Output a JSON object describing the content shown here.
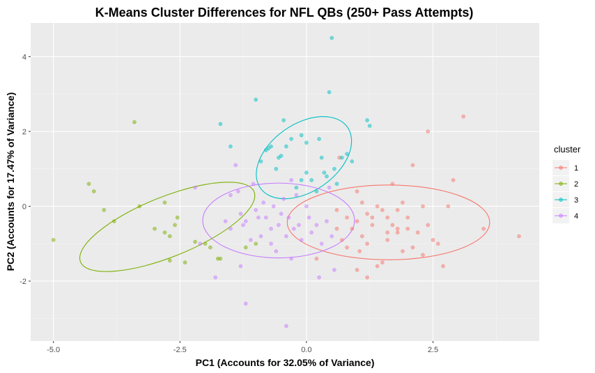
{
  "chart_data": {
    "type": "scatter",
    "title": "K-Means Cluster Differences for NFL QBs (250+ Pass Attempts)",
    "xlabel": "PC1 (Accounts for 32.05% of Variance)",
    "ylabel": "PC2 (Accounts for 17.47% of Variance)",
    "xlim": [
      -5.45,
      4.6
    ],
    "ylim": [
      -3.6,
      4.9
    ],
    "x_ticks": [
      -5.0,
      -2.5,
      0.0,
      2.5
    ],
    "x_tick_labels": [
      "-5.0",
      "-2.5",
      "0.0",
      "2.5"
    ],
    "y_ticks": [
      -2,
      0,
      2,
      4
    ],
    "y_tick_labels": [
      "-2",
      "0",
      "2",
      "4"
    ],
    "grid": true,
    "legend": {
      "title": "cluster",
      "position": "right"
    },
    "series": [
      {
        "name": "1",
        "color": "#F8766D",
        "ellipse": {
          "cx": 1.62,
          "cy": -0.43,
          "rx": 2.0,
          "ry": 1.0,
          "angle": 0
        },
        "points": [
          [
            0.6,
            -0.1
          ],
          [
            0.6,
            -0.6
          ],
          [
            0.7,
            -0.9
          ],
          [
            0.8,
            -0.3
          ],
          [
            0.9,
            -0.6
          ],
          [
            1.0,
            0.4
          ],
          [
            1.0,
            -0.4
          ],
          [
            1.05,
            -1.2
          ],
          [
            1.1,
            0.1
          ],
          [
            1.1,
            -0.8
          ],
          [
            1.2,
            -0.2
          ],
          [
            1.2,
            -1.0
          ],
          [
            1.3,
            -0.5
          ],
          [
            1.3,
            -0.3
          ],
          [
            1.4,
            0.0
          ],
          [
            1.4,
            -1.6
          ],
          [
            1.5,
            -0.1
          ],
          [
            1.5,
            -1.5
          ],
          [
            1.6,
            -0.3
          ],
          [
            1.6,
            -0.9
          ],
          [
            1.7,
            0.6
          ],
          [
            1.7,
            -0.5
          ],
          [
            1.8,
            -0.1
          ],
          [
            1.8,
            -0.7
          ],
          [
            1.9,
            -1.2
          ],
          [
            1.9,
            0.1
          ],
          [
            2.0,
            -0.3
          ],
          [
            2.0,
            -0.6
          ],
          [
            2.1,
            -1.1
          ],
          [
            2.1,
            1.1
          ],
          [
            2.2,
            -0.7
          ],
          [
            2.3,
            0.0
          ],
          [
            2.3,
            -1.3
          ],
          [
            2.4,
            2.0
          ],
          [
            2.4,
            -0.5
          ],
          [
            2.5,
            -0.9
          ],
          [
            2.6,
            -1.0
          ],
          [
            2.7,
            -1.6
          ],
          [
            2.8,
            0.0
          ],
          [
            2.9,
            0.7
          ],
          [
            3.1,
            2.4
          ],
          [
            3.5,
            -0.6
          ],
          [
            4.2,
            -0.8
          ],
          [
            1.2,
            -1.9
          ],
          [
            1.0,
            -1.7
          ],
          [
            0.2,
            -1.4
          ],
          [
            1.6,
            -0.7
          ],
          [
            1.8,
            -0.6
          ],
          [
            0.8,
            -1.1
          ],
          [
            0.65,
            1.3
          ]
        ]
      },
      {
        "name": "2",
        "color": "#7CAE00",
        "ellipse": {
          "cx": -2.75,
          "cy": -0.55,
          "rx": 1.85,
          "ry": 0.8,
          "angle": -22
        },
        "points": [
          [
            -5.0,
            -0.9
          ],
          [
            -4.3,
            0.6
          ],
          [
            -4.2,
            0.4
          ],
          [
            -4.0,
            -0.1
          ],
          [
            -3.8,
            -0.4
          ],
          [
            -3.4,
            2.25
          ],
          [
            -3.3,
            0.0
          ],
          [
            -3.0,
            -0.6
          ],
          [
            -2.8,
            -0.7
          ],
          [
            -2.8,
            0.1
          ],
          [
            -2.7,
            -0.8
          ],
          [
            -2.6,
            -0.5
          ],
          [
            -2.55,
            -0.3
          ],
          [
            -2.7,
            -1.45
          ],
          [
            -2.4,
            -1.5
          ],
          [
            -2.2,
            -0.95
          ],
          [
            -2.0,
            -1.0
          ],
          [
            -1.9,
            -1.1
          ],
          [
            -1.75,
            -1.4
          ],
          [
            -1.7,
            -1.4
          ],
          [
            -1.2,
            -1.1
          ],
          [
            -1.0,
            -1.0
          ]
        ]
      },
      {
        "name": "3",
        "color": "#00BFC4",
        "ellipse": {
          "cx": -0.05,
          "cy": 1.3,
          "rx": 1.05,
          "ry": 0.9,
          "angle": -35
        },
        "points": [
          [
            -1.7,
            2.2
          ],
          [
            -1.5,
            1.6
          ],
          [
            -1.0,
            2.85
          ],
          [
            -0.9,
            1.2
          ],
          [
            -0.8,
            1.5
          ],
          [
            -0.75,
            1.55
          ],
          [
            -0.7,
            1.6
          ],
          [
            -0.6,
            1.0
          ],
          [
            -0.55,
            1.3
          ],
          [
            -0.5,
            1.35
          ],
          [
            -0.45,
            2.3
          ],
          [
            -0.4,
            1.6
          ],
          [
            -0.3,
            1.8
          ],
          [
            -0.2,
            0.5
          ],
          [
            -0.1,
            1.9
          ],
          [
            0.0,
            1.7
          ],
          [
            0.0,
            0.9
          ],
          [
            0.1,
            0.7
          ],
          [
            0.2,
            0.4
          ],
          [
            0.25,
            1.8
          ],
          [
            0.3,
            1.3
          ],
          [
            0.4,
            0.8
          ],
          [
            0.45,
            3.05
          ],
          [
            0.5,
            4.5
          ],
          [
            0.55,
            1.0
          ],
          [
            0.6,
            0.6
          ],
          [
            0.7,
            1.3
          ],
          [
            0.8,
            1.4
          ],
          [
            0.9,
            1.2
          ],
          [
            1.2,
            2.3
          ],
          [
            1.25,
            2.15
          ],
          [
            0.35,
            0.9
          ],
          [
            -0.1,
            0.7
          ]
        ]
      },
      {
        "name": "4",
        "color": "#C77CFF",
        "ellipse": {
          "cx": -0.55,
          "cy": -0.38,
          "rx": 1.5,
          "ry": 1.0,
          "angle": 0
        },
        "points": [
          [
            -2.2,
            0.5
          ],
          [
            -2.1,
            -1.0
          ],
          [
            -1.8,
            -1.9
          ],
          [
            -1.5,
            -0.6
          ],
          [
            -1.5,
            0.3
          ],
          [
            -1.35,
            0.4
          ],
          [
            -1.3,
            -0.2
          ],
          [
            -1.25,
            -0.5
          ],
          [
            -1.2,
            -0.4
          ],
          [
            -1.1,
            -0.9
          ],
          [
            -1.05,
            0.6
          ],
          [
            -1.0,
            -0.1
          ],
          [
            -0.95,
            -0.3
          ],
          [
            -0.9,
            -0.8
          ],
          [
            -0.85,
            0.1
          ],
          [
            -0.8,
            -0.3
          ],
          [
            -0.7,
            -0.6
          ],
          [
            -0.65,
            0.0
          ],
          [
            -0.6,
            -1.2
          ],
          [
            -0.55,
            -0.5
          ],
          [
            -0.5,
            -0.2
          ],
          [
            -0.45,
            0.2
          ],
          [
            -0.4,
            -0.8
          ],
          [
            -0.35,
            -0.3
          ],
          [
            -0.3,
            -1.4
          ],
          [
            -0.25,
            -0.6
          ],
          [
            -0.2,
            0.3
          ],
          [
            -0.15,
            -0.5
          ],
          [
            -0.1,
            -0.9
          ],
          [
            0.0,
            0.0
          ],
          [
            0.05,
            -0.3
          ],
          [
            0.1,
            -0.7
          ],
          [
            0.2,
            -0.5
          ],
          [
            0.3,
            -1.0
          ],
          [
            0.4,
            -0.4
          ],
          [
            0.5,
            -0.8
          ],
          [
            0.55,
            -1.7
          ],
          [
            0.45,
            0.5
          ],
          [
            -1.3,
            -1.6
          ],
          [
            -1.2,
            -2.6
          ],
          [
            -0.4,
            -3.2
          ],
          [
            -1.4,
            1.1
          ],
          [
            0.25,
            -1.9
          ],
          [
            -0.7,
            -1.0
          ],
          [
            -0.3,
            0.7
          ],
          [
            -1.6,
            -0.4
          ]
        ]
      }
    ]
  }
}
